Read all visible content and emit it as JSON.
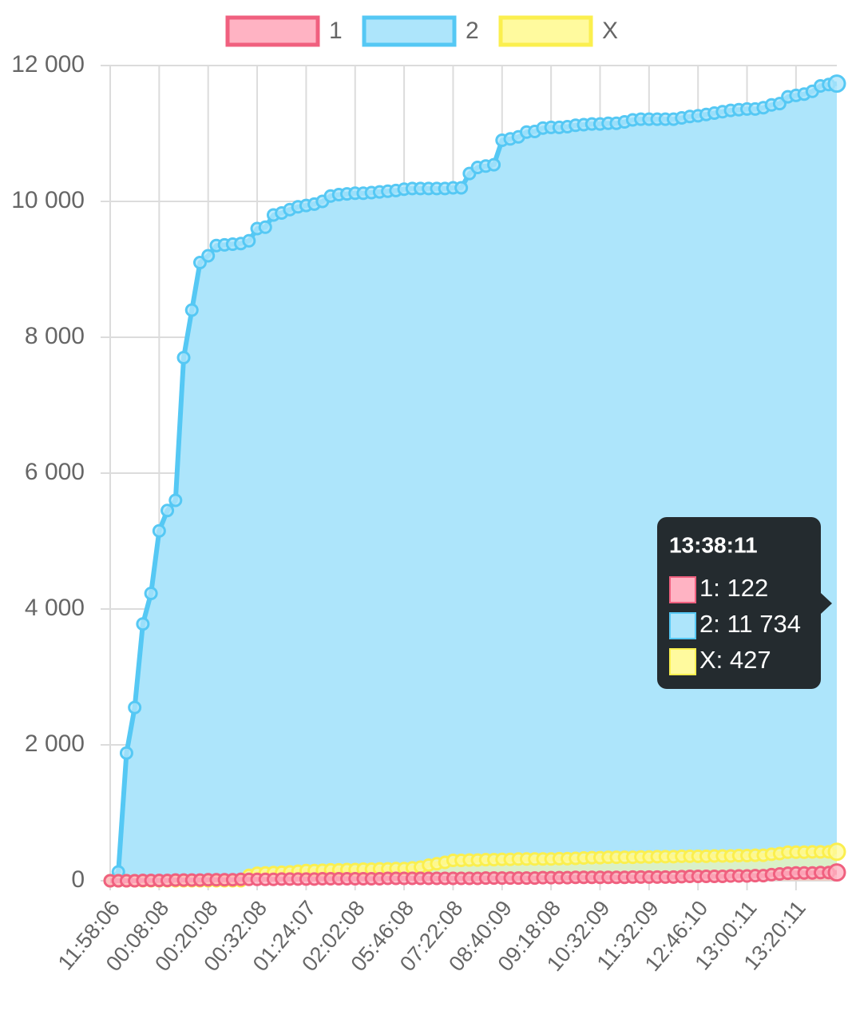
{
  "chart_data": {
    "type": "line",
    "categories": [
      "11:58:06",
      null,
      null,
      null,
      null,
      null,
      "00:08:08",
      null,
      null,
      null,
      null,
      null,
      "00:20:08",
      null,
      null,
      null,
      null,
      null,
      "00:32:08",
      null,
      null,
      null,
      null,
      null,
      "01:24:07",
      null,
      null,
      null,
      null,
      null,
      "02:02:08",
      null,
      null,
      null,
      null,
      null,
      "05:46:08",
      null,
      null,
      null,
      null,
      null,
      "07:22:08",
      null,
      null,
      null,
      null,
      null,
      "08:40:09",
      null,
      null,
      null,
      null,
      null,
      "09:18:08",
      null,
      null,
      null,
      null,
      null,
      "10:32:09",
      null,
      null,
      null,
      null,
      null,
      "11:32:09",
      null,
      null,
      null,
      null,
      null,
      "12:46:10",
      null,
      null,
      null,
      null,
      null,
      "13:00:11",
      null,
      null,
      null,
      null,
      null,
      "13:20:11",
      null,
      null,
      null,
      null,
      null
    ],
    "series": [
      {
        "name": "1",
        "color": "#f0607f",
        "fill": "#ffb3c3",
        "values": [
          0,
          0,
          0,
          0,
          5,
          5,
          5,
          5,
          10,
          10,
          10,
          10,
          15,
          15,
          15,
          15,
          20,
          20,
          20,
          20,
          20,
          25,
          25,
          25,
          25,
          25,
          30,
          30,
          30,
          30,
          30,
          30,
          30,
          30,
          35,
          35,
          35,
          35,
          35,
          35,
          35,
          35,
          35,
          35,
          35,
          35,
          40,
          40,
          40,
          40,
          40,
          40,
          40,
          45,
          45,
          45,
          45,
          50,
          50,
          50,
          50,
          50,
          50,
          50,
          55,
          55,
          55,
          55,
          55,
          55,
          60,
          65,
          65,
          65,
          65,
          65,
          70,
          70,
          70,
          75,
          75,
          90,
          100,
          110,
          115,
          115,
          115,
          120,
          120,
          122
        ]
      },
      {
        "name": "2",
        "color": "#55c8f4",
        "fill": "#ade5fb",
        "values": [
          0,
          130,
          1880,
          2550,
          3780,
          4230,
          5150,
          5450,
          5600,
          7700,
          8400,
          9100,
          9200,
          9350,
          9360,
          9370,
          9380,
          9420,
          9600,
          9620,
          9800,
          9830,
          9880,
          9920,
          9940,
          9960,
          10000,
          10080,
          10100,
          10110,
          10120,
          10120,
          10130,
          10140,
          10150,
          10160,
          10180,
          10190,
          10190,
          10190,
          10190,
          10190,
          10200,
          10200,
          10410,
          10500,
          10520,
          10540,
          10900,
          10920,
          10950,
          11020,
          11030,
          11080,
          11090,
          11090,
          11100,
          11120,
          11130,
          11140,
          11140,
          11150,
          11150,
          11170,
          11200,
          11210,
          11210,
          11210,
          11210,
          11210,
          11230,
          11250,
          11260,
          11280,
          11300,
          11320,
          11340,
          11350,
          11360,
          11360,
          11380,
          11420,
          11440,
          11540,
          11560,
          11580,
          11620,
          11700,
          11720,
          11734
        ]
      },
      {
        "name": "X",
        "color": "#fbef4e",
        "fill": "#fffa9e",
        "values": [
          0,
          0,
          0,
          0,
          0,
          0,
          0,
          0,
          0,
          0,
          0,
          0,
          0,
          0,
          0,
          0,
          0,
          80,
          110,
          115,
          120,
          125,
          130,
          140,
          150,
          150,
          155,
          160,
          160,
          165,
          165,
          170,
          170,
          175,
          175,
          180,
          180,
          190,
          200,
          230,
          250,
          270,
          300,
          300,
          305,
          305,
          310,
          310,
          315,
          315,
          320,
          320,
          320,
          320,
          320,
          325,
          325,
          330,
          335,
          340,
          340,
          345,
          345,
          345,
          345,
          350,
          350,
          355,
          355,
          355,
          360,
          360,
          360,
          360,
          365,
          365,
          365,
          370,
          370,
          375,
          375,
          390,
          400,
          420,
          420,
          420,
          425,
          425,
          425,
          427
        ]
      }
    ],
    "ylim": [
      0,
      12000
    ],
    "yticks": [
      0,
      {
        "value": 2000,
        "label": "2 000"
      },
      {
        "value": 4000,
        "label": "4 000"
      },
      {
        "value": 6000,
        "label": "6 000"
      },
      {
        "value": 8000,
        "label": "8 000"
      },
      {
        "value": 10000,
        "label": "10 000"
      },
      {
        "value": 12000,
        "label": "12 000"
      }
    ],
    "grid": true,
    "legend": "top",
    "tooltip": {
      "title": "13:38:11",
      "lines": [
        "1: 122",
        "2: 11 734",
        "X: 427"
      ]
    }
  }
}
